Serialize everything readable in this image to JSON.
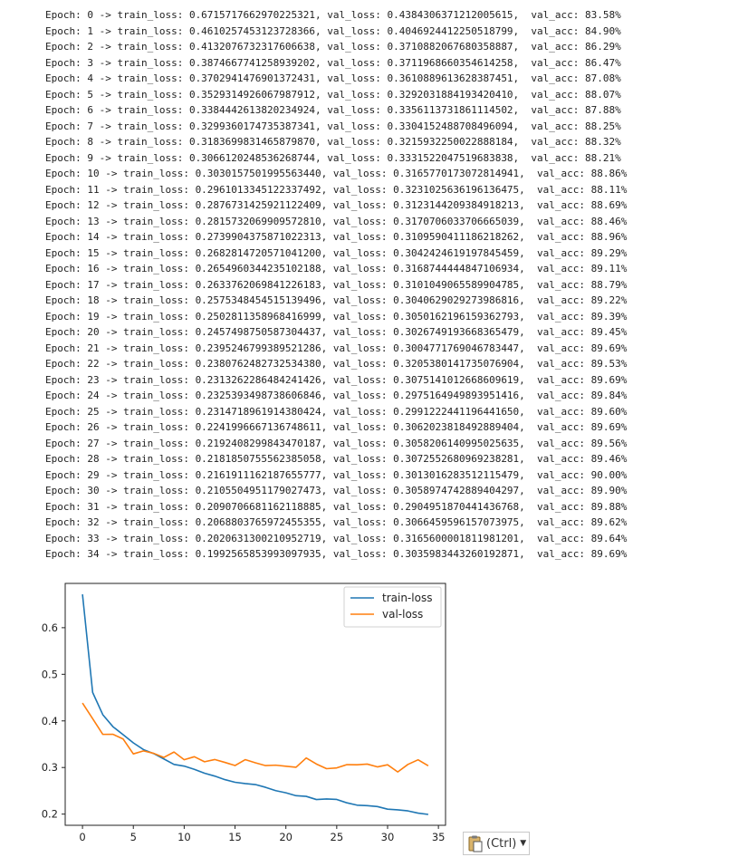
{
  "log": {
    "lines": [
      "Epoch: 0 -> train_loss: 0.6715717662970225321, val_loss: 0.4384306371212005615,  val_acc: 83.58%",
      "Epoch: 1 -> train_loss: 0.4610257453123728366, val_loss: 0.4046924412250518799,  val_acc: 84.90%",
      "Epoch: 2 -> train_loss: 0.4132076732317606638, val_loss: 0.3710882067680358887,  val_acc: 86.29%",
      "Epoch: 3 -> train_loss: 0.3874667741258939202, val_loss: 0.3711968660354614258,  val_acc: 86.47%",
      "Epoch: 4 -> train_loss: 0.3702941476901372431, val_loss: 0.3610889613628387451,  val_acc: 87.08%",
      "Epoch: 5 -> train_loss: 0.3529314926067987912, val_loss: 0.3292031884193420410,  val_acc: 88.07%",
      "Epoch: 6 -> train_loss: 0.3384442613820234924, val_loss: 0.3356113731861114502,  val_acc: 87.88%",
      "Epoch: 7 -> train_loss: 0.3299360174735387341, val_loss: 0.3304152488708496094,  val_acc: 88.25%",
      "Epoch: 8 -> train_loss: 0.3183699831465879870, val_loss: 0.3215932250022888184,  val_acc: 88.32%",
      "Epoch: 9 -> train_loss: 0.3066120248536268744, val_loss: 0.3331522047519683838,  val_acc: 88.21%",
      "Epoch: 10 -> train_loss: 0.3030157501995563440, val_loss: 0.3165770173072814941,  val_acc: 88.86%",
      "Epoch: 11 -> train_loss: 0.2961013345122337492, val_loss: 0.3231025636196136475,  val_acc: 88.11%",
      "Epoch: 12 -> train_loss: 0.2876731425921122409, val_loss: 0.3123144209384918213,  val_acc: 88.69%",
      "Epoch: 13 -> train_loss: 0.2815732069909572810, val_loss: 0.3170706033706665039,  val_acc: 88.46%",
      "Epoch: 14 -> train_loss: 0.2739904375871022313, val_loss: 0.3109590411186218262,  val_acc: 88.96%",
      "Epoch: 15 -> train_loss: 0.2682814720571041200, val_loss: 0.3042424619197845459,  val_acc: 89.29%",
      "Epoch: 16 -> train_loss: 0.2654960344235102188, val_loss: 0.3168744444847106934,  val_acc: 89.11%",
      "Epoch: 17 -> train_loss: 0.2633762069841226183, val_loss: 0.3101049065589904785,  val_acc: 88.79%",
      "Epoch: 18 -> train_loss: 0.2575348454515139496, val_loss: 0.3040629029273986816,  val_acc: 89.22%",
      "Epoch: 19 -> train_loss: 0.2502811358968416999, val_loss: 0.3050162196159362793,  val_acc: 89.39%",
      "Epoch: 20 -> train_loss: 0.2457498750587304437, val_loss: 0.3026749193668365479,  val_acc: 89.45%",
      "Epoch: 21 -> train_loss: 0.2395246799389521286, val_loss: 0.3004771769046783447,  val_acc: 89.69%",
      "Epoch: 22 -> train_loss: 0.2380762482732534380, val_loss: 0.3205380141735076904,  val_acc: 89.53%",
      "Epoch: 23 -> train_loss: 0.2313262286484241426, val_loss: 0.3075141012668609619,  val_acc: 89.69%",
      "Epoch: 24 -> train_loss: 0.2325393498738606846, val_loss: 0.2975164949893951416,  val_acc: 89.84%",
      "Epoch: 25 -> train_loss: 0.2314718961914380424, val_loss: 0.2991222441196441650,  val_acc: 89.60%",
      "Epoch: 26 -> train_loss: 0.2241996667136748611, val_loss: 0.3062023818492889404,  val_acc: 89.69%",
      "Epoch: 27 -> train_loss: 0.2192408299843470187, val_loss: 0.3058206140995025635,  val_acc: 89.56%",
      "Epoch: 28 -> train_loss: 0.2181850755562385058, val_loss: 0.3072552680969238281,  val_acc: 89.46%",
      "Epoch: 29 -> train_loss: 0.2161911162187655777, val_loss: 0.3013016283512115479,  val_acc: 90.00%",
      "Epoch: 30 -> train_loss: 0.2105504951179027473, val_loss: 0.3058974742889404297,  val_acc: 89.90%",
      "Epoch: 31 -> train_loss: 0.2090706681162118885, val_loss: 0.2904951870441436768,  val_acc: 89.88%",
      "Epoch: 32 -> train_loss: 0.2068803765972455355, val_loss: 0.3066459596157073975,  val_acc: 89.62%",
      "Epoch: 33 -> train_loss: 0.2020631300210952719, val_loss: 0.3165600001811981201,  val_acc: 89.64%",
      "Epoch: 34 -> train_loss: 0.1992565853993097935, val_loss: 0.3035983443260192871,  val_acc: 89.69%"
    ]
  },
  "chart_data": {
    "type": "line",
    "x": [
      0,
      1,
      2,
      3,
      4,
      5,
      6,
      7,
      8,
      9,
      10,
      11,
      12,
      13,
      14,
      15,
      16,
      17,
      18,
      19,
      20,
      21,
      22,
      23,
      24,
      25,
      26,
      27,
      28,
      29,
      30,
      31,
      32,
      33,
      34
    ],
    "series": [
      {
        "name": "train-loss",
        "color": "#1f77b4",
        "values": [
          0.6716,
          0.461,
          0.4132,
          0.3875,
          0.3703,
          0.3529,
          0.3384,
          0.3299,
          0.3184,
          0.3066,
          0.303,
          0.2961,
          0.2877,
          0.2816,
          0.274,
          0.2683,
          0.2655,
          0.2634,
          0.2575,
          0.2503,
          0.2457,
          0.2395,
          0.2381,
          0.2313,
          0.2325,
          0.2315,
          0.2242,
          0.2192,
          0.2182,
          0.2162,
          0.2106,
          0.2091,
          0.2069,
          0.2021,
          0.1993
        ]
      },
      {
        "name": "val-loss",
        "color": "#ff7f0e",
        "values": [
          0.4384,
          0.4047,
          0.3711,
          0.3712,
          0.3611,
          0.3292,
          0.3356,
          0.3304,
          0.3216,
          0.3332,
          0.3166,
          0.3231,
          0.3123,
          0.3171,
          0.311,
          0.3042,
          0.3169,
          0.3101,
          0.3041,
          0.305,
          0.3027,
          0.3005,
          0.3205,
          0.3075,
          0.2975,
          0.2991,
          0.3062,
          0.3058,
          0.3073,
          0.3013,
          0.3059,
          0.2905,
          0.3066,
          0.3166,
          0.3036
        ]
      }
    ],
    "xticks": [
      0,
      5,
      10,
      15,
      20,
      25,
      30,
      35
    ],
    "yticks": [
      0.2,
      0.3,
      0.4,
      0.5,
      0.6
    ],
    "xlim": [
      -1.7,
      35.7
    ],
    "ylim": [
      0.176,
      0.695
    ],
    "legend": "top-right",
    "grid": false
  },
  "paste_button": {
    "label": "(Ctrl)"
  }
}
